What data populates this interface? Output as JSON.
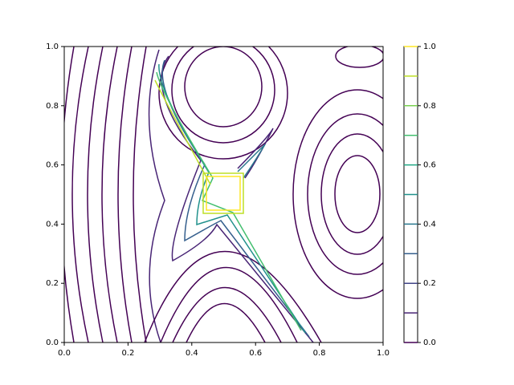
{
  "chart_data": {
    "type": "contour",
    "xlim": [
      0,
      1
    ],
    "ylim": [
      0,
      1
    ],
    "xticks": [
      {
        "value": 0,
        "label": "0.0"
      },
      {
        "value": 0.2,
        "label": "0.2"
      },
      {
        "value": 0.4,
        "label": "0.4"
      },
      {
        "value": 0.6,
        "label": "0.6"
      },
      {
        "value": 0.8,
        "label": "0.8"
      },
      {
        "value": 1,
        "label": "1.0"
      }
    ],
    "yticks": [
      {
        "value": 0,
        "label": "0.0"
      },
      {
        "value": 0.2,
        "label": "0.2"
      },
      {
        "value": 0.4,
        "label": "0.4"
      },
      {
        "value": 0.6,
        "label": "0.6"
      },
      {
        "value": 0.8,
        "label": "0.8"
      },
      {
        "value": 1,
        "label": "1.0"
      }
    ],
    "levels": [
      0,
      0.1,
      0.2,
      0.3,
      0.4,
      0.5,
      0.6,
      0.7,
      0.8,
      0.9,
      1
    ],
    "level_colors": [
      "#440154",
      "#482475",
      "#414487",
      "#355f8d",
      "#2a788e",
      "#21918c",
      "#22a884",
      "#44bf70",
      "#7ad151",
      "#bddf26",
      "#fde725"
    ],
    "clim": [
      0,
      1
    ],
    "colorbar_ticks": [
      {
        "value": 0,
        "label": "0.0"
      },
      {
        "value": 0.2,
        "label": "0.2"
      },
      {
        "value": 0.4,
        "label": "0.4"
      },
      {
        "value": 0.6,
        "label": "0.6"
      },
      {
        "value": 0.8,
        "label": "0.8"
      },
      {
        "value": 1,
        "label": "1.0"
      }
    ]
  }
}
